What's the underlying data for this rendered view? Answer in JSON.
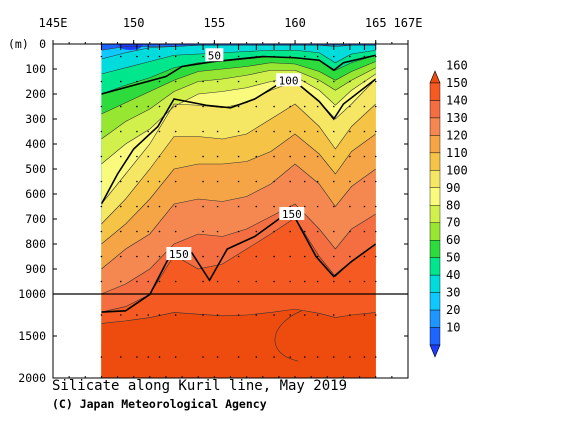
{
  "chart_data": {
    "type": "heatmap",
    "title": "Silicate along Kuril line, May 2019",
    "credit": "(C) Japan Meteorological Agency",
    "xaxis": {
      "range": [
        145,
        167
      ],
      "ticks": [
        {
          "value": 145,
          "label": "145E"
        },
        {
          "value": 150,
          "label": "150"
        },
        {
          "value": 155,
          "label": "155"
        },
        {
          "value": 160,
          "label": "160"
        },
        {
          "value": 165,
          "label": "165"
        },
        {
          "value": 167,
          "label": "167E"
        }
      ]
    },
    "yaxis": {
      "unit": "(m)",
      "ticks": [
        0,
        100,
        200,
        300,
        400,
        500,
        600,
        700,
        800,
        900,
        1000,
        1500,
        2000
      ],
      "upper_range": [
        0,
        1000
      ],
      "lower_range": [
        1000,
        2000
      ]
    },
    "colorbar": {
      "levels": [
        10,
        20,
        30,
        40,
        50,
        60,
        70,
        80,
        90,
        100,
        110,
        120,
        130,
        140,
        150,
        160
      ],
      "colors": [
        "#1e3cff",
        "#1e64ff",
        "#1e96ff",
        "#0fc8ff",
        "#00dcdc",
        "#00e68c",
        "#2ddc3c",
        "#96e632",
        "#d2f04b",
        "#fafa7d",
        "#f5e664",
        "#f5c346",
        "#f5a546",
        "#f58750",
        "#f56e41",
        "#f55a23",
        "#ee4b0f"
      ]
    },
    "station_longitudes": [
      148,
      149.2,
      150.2,
      150.9,
      151.6,
      152.6,
      154.3,
      155.2,
      156.5,
      157.6,
      158.7,
      159.7,
      160.6,
      161.4,
      162.4,
      163.4,
      164.3,
      165
    ],
    "data_extent_lon": [
      148,
      165
    ],
    "contour_labels": [
      {
        "value": "50",
        "lon": 155.0,
        "depth": 45
      },
      {
        "value": "100",
        "lon": 159.6,
        "depth": 145
      },
      {
        "value": "150",
        "lon": 159.8,
        "depth": 680
      },
      {
        "value": "150",
        "lon": 152.8,
        "depth": 840
      }
    ],
    "bold_contours": [
      50,
      100,
      150
    ],
    "bold_contour_depths": {
      "50": [
        [
          148,
          200
        ],
        [
          150,
          165
        ],
        [
          152,
          130
        ],
        [
          153,
          90
        ],
        [
          155,
          70
        ],
        [
          158,
          50
        ],
        [
          160,
          55
        ],
        [
          161.5,
          65
        ],
        [
          162.4,
          105
        ],
        [
          163,
          75
        ],
        [
          165,
          45
        ]
      ],
      "100": [
        [
          148,
          640
        ],
        [
          149,
          520
        ],
        [
          150,
          420
        ],
        [
          151.5,
          330
        ],
        [
          152.5,
          220
        ],
        [
          154.5,
          245
        ],
        [
          156,
          255
        ],
        [
          157.5,
          220
        ],
        [
          159,
          160
        ],
        [
          160,
          150
        ],
        [
          161.5,
          230
        ],
        [
          162.4,
          300
        ],
        [
          163,
          240
        ],
        [
          165,
          140
        ]
      ],
      "150": [
        [
          148,
          1215
        ],
        [
          149.5,
          1200
        ],
        [
          151,
          1005
        ],
        [
          152.3,
          840
        ],
        [
          153.6,
          835
        ],
        [
          154.7,
          945
        ],
        [
          155.8,
          820
        ],
        [
          157.5,
          770
        ],
        [
          159,
          700
        ],
        [
          160,
          695
        ],
        [
          161.3,
          850
        ],
        [
          162.4,
          930
        ],
        [
          163.5,
          870
        ],
        [
          165,
          800
        ]
      ]
    },
    "horizontal_rule_depth": 1000
  }
}
